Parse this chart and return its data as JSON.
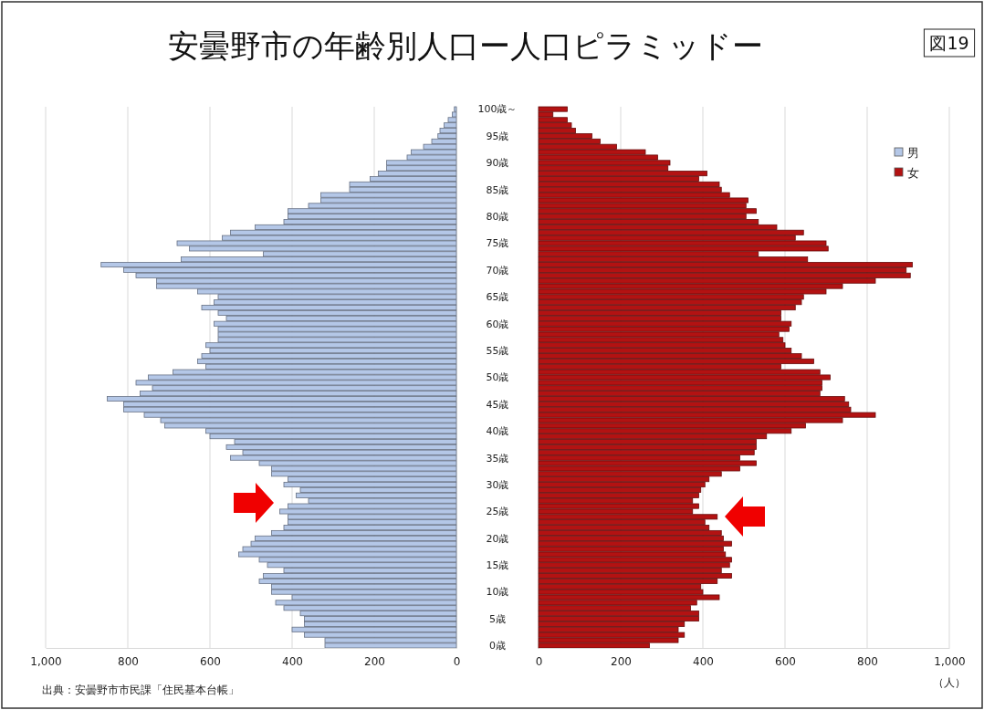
{
  "chart_data": [
    {
      "type": "bar",
      "orientation": "horizontal",
      "title": "安曇野市の年齢別人口ー人口ピラミッドー",
      "annotations": [
        "図19",
        "出典：安曇野市市民課「住民基本台帳」"
      ],
      "categories": [
        "100歳～",
        null,
        null,
        null,
        null,
        "95歳",
        null,
        null,
        null,
        null,
        "90歳",
        null,
        null,
        null,
        null,
        "85歳",
        null,
        null,
        null,
        null,
        "80歳",
        null,
        null,
        null,
        null,
        "75歳",
        null,
        null,
        null,
        null,
        "70歳",
        null,
        null,
        null,
        null,
        "65歳",
        null,
        null,
        null,
        null,
        "60歳",
        null,
        null,
        null,
        null,
        "55歳",
        null,
        null,
        null,
        null,
        "50歳",
        null,
        null,
        null,
        null,
        "45歳",
        null,
        null,
        null,
        null,
        "40歳",
        null,
        null,
        null,
        null,
        "35歳",
        null,
        null,
        null,
        null,
        "30歳",
        null,
        null,
        null,
        null,
        "25歳",
        null,
        null,
        null,
        null,
        "20歳",
        null,
        null,
        null,
        null,
        "15歳",
        null,
        null,
        null,
        null,
        "10歳",
        null,
        null,
        null,
        null,
        "5歳",
        null,
        null,
        null,
        null,
        "0歳"
      ],
      "series": [
        {
          "name": "男",
          "color": "#b4c7e7",
          "values": [
            5,
            10,
            20,
            30,
            40,
            45,
            60,
            80,
            110,
            120,
            170,
            170,
            190,
            210,
            260,
            260,
            330,
            330,
            360,
            410,
            410,
            420,
            490,
            550,
            570,
            680,
            650,
            470,
            670,
            865,
            810,
            780,
            730,
            730,
            630,
            580,
            590,
            620,
            580,
            560,
            590,
            580,
            580,
            580,
            610,
            600,
            620,
            630,
            610,
            690,
            750,
            780,
            740,
            770,
            850,
            810,
            810,
            760,
            720,
            710,
            610,
            600,
            540,
            560,
            520,
            550,
            480,
            450,
            450,
            410,
            420,
            380,
            390,
            360,
            410,
            430,
            410,
            410,
            420,
            450,
            490,
            500,
            520,
            530,
            480,
            460,
            420,
            470,
            480,
            450,
            450,
            400,
            440,
            420,
            380,
            370,
            370,
            400,
            370,
            320,
            320
          ]
        }
      ],
      "xlim": [
        1000,
        0
      ],
      "xticks": [
        {
          "value": 1000,
          "label": "1,000"
        },
        800,
        600,
        400,
        200,
        0
      ],
      "grid": "x",
      "legend": "top right"
    },
    {
      "type": "bar",
      "orientation": "horizontal",
      "xlabel": "（人）",
      "categories": [
        null,
        null,
        null,
        null,
        null,
        null,
        null,
        null,
        null,
        null,
        null,
        null,
        null,
        null,
        null,
        null,
        null,
        null,
        null,
        null,
        null,
        null,
        null,
        null,
        null,
        null,
        null,
        null,
        null,
        null,
        null,
        null,
        null,
        null,
        null,
        null,
        null,
        null,
        null,
        null,
        null,
        null,
        null,
        null,
        null,
        null,
        null,
        null,
        null,
        null,
        null,
        null,
        null,
        null,
        null,
        null,
        null,
        null,
        null,
        null,
        null,
        null,
        null,
        null,
        null,
        null,
        null,
        null,
        null,
        null,
        null,
        null,
        null,
        null,
        null,
        null,
        null,
        null,
        null,
        null,
        null,
        null,
        null,
        null,
        null,
        null,
        null,
        null,
        null,
        null,
        null,
        null,
        null,
        null,
        null,
        null,
        null,
        null,
        null,
        null,
        null
      ],
      "series": [
        {
          "name": "女",
          "color": "#b31212",
          "values": [
            70,
            35,
            70,
            80,
            90,
            130,
            150,
            190,
            260,
            290,
            320,
            315,
            410,
            390,
            440,
            445,
            465,
            510,
            505,
            530,
            505,
            535,
            580,
            645,
            625,
            700,
            705,
            535,
            655,
            910,
            895,
            905,
            820,
            740,
            700,
            645,
            640,
            625,
            590,
            590,
            615,
            610,
            585,
            595,
            600,
            615,
            640,
            670,
            590,
            685,
            710,
            690,
            690,
            685,
            745,
            755,
            760,
            820,
            740,
            650,
            615,
            555,
            530,
            530,
            525,
            490,
            530,
            490,
            445,
            415,
            405,
            395,
            390,
            375,
            390,
            375,
            435,
            405,
            415,
            445,
            450,
            470,
            450,
            455,
            470,
            465,
            445,
            470,
            435,
            395,
            400,
            440,
            385,
            370,
            390,
            390,
            355,
            340,
            355,
            340,
            270
          ]
        }
      ],
      "xlim": [
        0,
        1000
      ],
      "xticks": [
        0,
        200,
        400,
        600,
        800,
        {
          "value": 1000,
          "label": "1,000"
        }
      ],
      "grid": "x",
      "legend": "top right"
    }
  ]
}
